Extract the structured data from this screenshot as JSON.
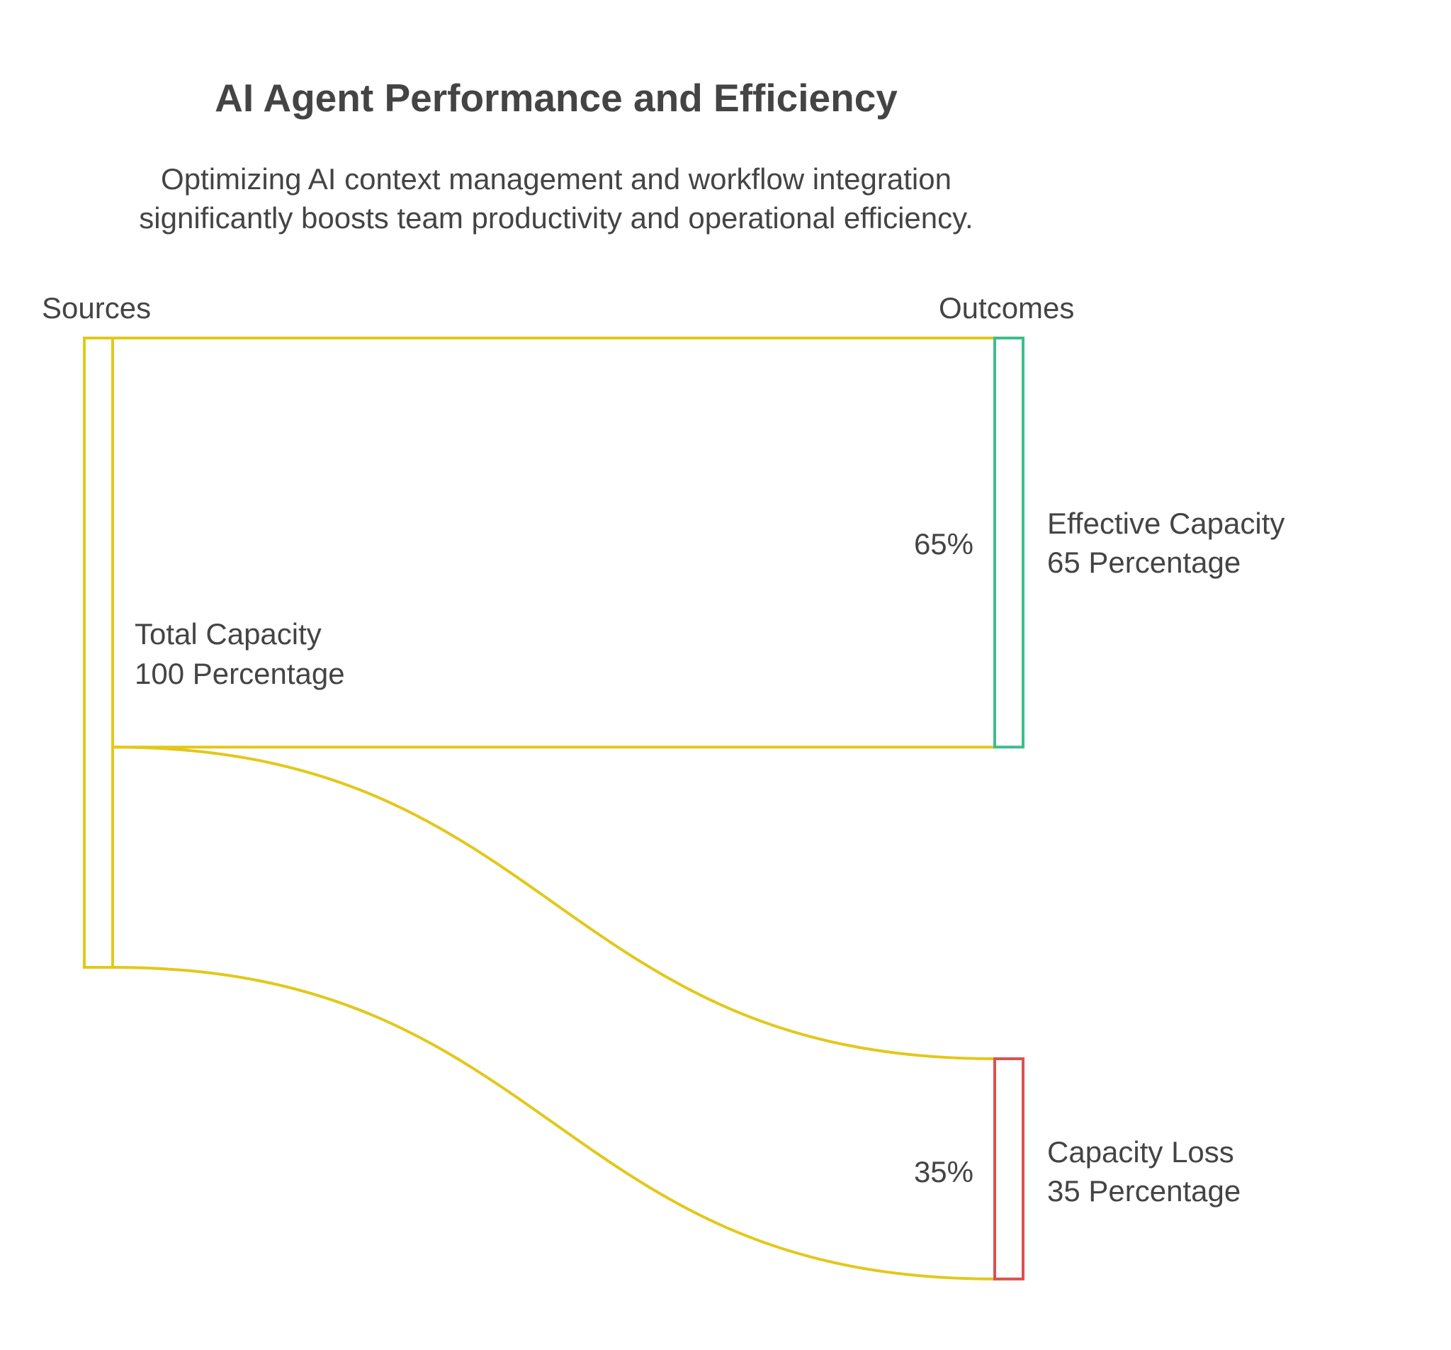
{
  "chart_data": {
    "type": "sankey",
    "title": "AI Agent Performance and Efficiency",
    "subtitle": [
      "Optimizing AI context management and workflow integration",
      "significantly boosts team productivity and operational efficiency."
    ],
    "column_headers": {
      "left": "Sources",
      "right": "Outcomes"
    },
    "unit": "Percentage",
    "source": {
      "name": "Total Capacity",
      "value": 100,
      "value_label": "100 Percentage",
      "color": "#E2C81A"
    },
    "targets": [
      {
        "name": "Effective Capacity",
        "value": 65,
        "value_label": "65 Percentage",
        "flow_label": "65%",
        "color": "#3DBE8A"
      },
      {
        "name": "Capacity Loss",
        "value": 35,
        "value_label": "35 Percentage",
        "flow_label": "35%",
        "color": "#DD5050"
      }
    ],
    "flow_color": "#E2C81A"
  }
}
